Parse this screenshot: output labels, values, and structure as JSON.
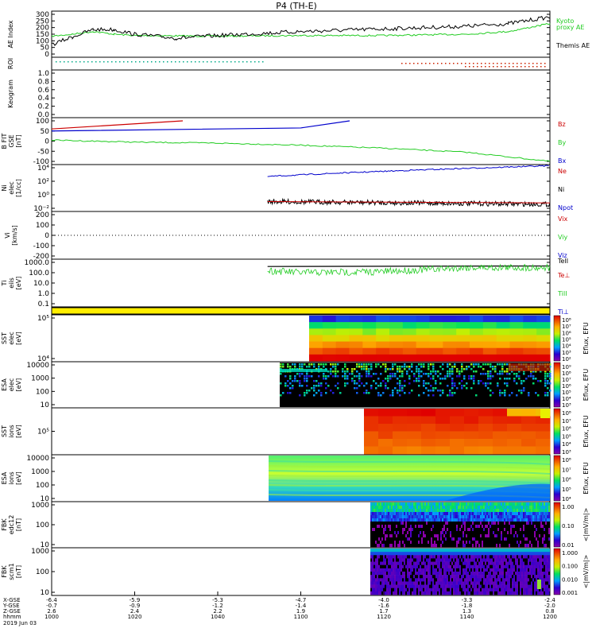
{
  "title": "P4 (TH-E)",
  "colors": {
    "kyoto": "#22cc22",
    "themis": "#000000",
    "bz": "#cc0000",
    "by": "#22cc22",
    "bx": "#0000cc",
    "ne": "#cc0000",
    "ni": "#0000cc",
    "npot": "#000000",
    "vx": "#cc0000",
    "vy": "#22cc22",
    "vz": "#0000cc",
    "te_perp": "#cc0000",
    "ti_par": "#22cc22",
    "ti_perp": "#0000cc",
    "teii": "#000000",
    "roi_left": "#00aa88",
    "roi_right": "#cc2200",
    "band": "#ffee00"
  },
  "panels": [
    {
      "key": "ae",
      "label": "AE Index",
      "ticks": [
        "300",
        "250",
        "200",
        "150",
        "100",
        "50",
        "0"
      ],
      "legend": [
        "Kyoto",
        "proxy AE",
        "Themis AE"
      ]
    },
    {
      "key": "roi",
      "label": "ROI",
      "ticks": []
    },
    {
      "key": "keo",
      "label": "Keogram",
      "ticks": [
        "1.0",
        "0.8",
        "0.6",
        "0.4",
        "0.2",
        "0.0"
      ]
    },
    {
      "key": "bfit",
      "label": "B FIT\nGSE\n[nT]",
      "ticks": [
        "100",
        "50",
        "0",
        "-50",
        "-100"
      ],
      "legend": [
        "Bz",
        "By",
        "Bx"
      ]
    },
    {
      "key": "ni",
      "label": "Ni\nelec\n[1/cc]",
      "ticks": [
        "10⁴",
        "10²",
        "10⁰",
        "10⁻²"
      ],
      "legend": [
        "Ne",
        "Ni",
        "Npot"
      ]
    },
    {
      "key": "vi",
      "label": "Vi\n[km/s]",
      "ticks": [
        "200",
        "100",
        "0",
        "-100",
        "-200"
      ],
      "legend": [
        "Vix",
        "Viy",
        "Viz",
        "TeII"
      ]
    },
    {
      "key": "ti",
      "label": "Ti\neiis\n[eV]",
      "ticks": [
        "1000.0",
        "100.0",
        "10.0",
        "1.0",
        "0.1"
      ],
      "legend": [
        "Te⊥",
        "TiII",
        "Ti⊥"
      ]
    },
    {
      "key": "sst_e",
      "label": "SST\nelec\n[eV]",
      "ticks": [
        "10⁵",
        "10⁴"
      ],
      "cb": [
        "10⁸",
        "10⁷",
        "10⁶",
        "10⁵",
        "10⁴",
        "10³",
        "10²"
      ],
      "cblabel": "Eflux, EFU"
    },
    {
      "key": "esa_e",
      "label": "ESA\nelec\n[eV]",
      "ticks": [
        "10000",
        "1000",
        "100",
        "10"
      ],
      "cb": [
        "10⁹",
        "10⁸",
        "10⁷",
        "10⁶",
        "10⁵",
        "10⁴",
        "10³"
      ],
      "cblabel": "Eflux, EFU"
    },
    {
      "key": "sst_i",
      "label": "SST\nions\n[eV]",
      "ticks": [
        "10⁵"
      ],
      "cb": [
        "10⁸",
        "10⁷",
        "10⁶",
        "10⁵",
        "10⁴",
        "10³"
      ],
      "cblabel": "Eflux, EFU"
    },
    {
      "key": "esa_i",
      "label": "ESA\nions\n[eV]",
      "ticks": [
        "10000",
        "1000",
        "100",
        "10"
      ],
      "cb": [
        "10⁸",
        "10⁷",
        "10⁶",
        "10⁵",
        "10⁴"
      ],
      "cblabel": "Eflux, EFU"
    },
    {
      "key": "fbk1",
      "label": "FBK\nedc12\n[nT]",
      "ticks": [
        "1000",
        "100",
        "10"
      ],
      "cb": [
        "1.00",
        "0.10",
        "0.01"
      ],
      "cblabel": "<|mV/m|>"
    },
    {
      "key": "fbk2",
      "label": "FBK\nscm1\n[nT]",
      "ticks": [
        "1000",
        "100",
        "10"
      ],
      "cb": [
        "1.000",
        "0.100",
        "0.010",
        "0.001"
      ],
      "cblabel": "<|mV/m|>"
    }
  ],
  "xaxis": {
    "row_labels": [
      "X-GSE",
      "Y-GSE",
      "Z-GSE",
      "hhmm",
      "2019 Jun 03"
    ],
    "columns": [
      {
        "x": "-6.4",
        "y": "-0.7",
        "z": "2.6",
        "t": "1000"
      },
      {
        "x": "-5.9",
        "y": "-0.9",
        "z": "2.4",
        "t": "1020"
      },
      {
        "x": "-5.3",
        "y": "-1.2",
        "z": "2.2",
        "t": "1040"
      },
      {
        "x": "-4.7",
        "y": "-1.4",
        "z": "1.9",
        "t": "1100"
      },
      {
        "x": "-4.0",
        "y": "-1.6",
        "z": "1.7",
        "t": "1120"
      },
      {
        "x": "-3.3",
        "y": "-1.8",
        "z": "1.3",
        "t": "1140"
      },
      {
        "x": "-2.4",
        "y": "-2.0",
        "z": "0.8",
        "t": "1200"
      }
    ]
  },
  "chart_data": {
    "type": "line",
    "title": "P4 (TH-E)",
    "x_time_hhmm": [
      "1000",
      "1020",
      "1040",
      "1100",
      "1120",
      "1140",
      "1200"
    ],
    "series": [
      {
        "name": "Kyoto proxy AE",
        "x": [
          "1000",
          "1005",
          "1010",
          "1015",
          "1020",
          "1040",
          "1100",
          "1120",
          "1140",
          "1150",
          "1200"
        ],
        "values": [
          135,
          150,
          170,
          150,
          140,
          135,
          140,
          140,
          150,
          170,
          230
        ]
      },
      {
        "name": "Themis AE",
        "x": [
          "1000",
          "1005",
          "1010",
          "1015",
          "1020",
          "1030",
          "1040",
          "1100",
          "1120",
          "1140",
          "1150",
          "1200"
        ],
        "values": [
          70,
          130,
          185,
          185,
          150,
          120,
          140,
          170,
          190,
          210,
          230,
          280
        ]
      },
      {
        "name": "Bz",
        "x": [
          "1000",
          "1020"
        ],
        "values": [
          60,
          100
        ]
      },
      {
        "name": "Bx",
        "x": [
          "1000",
          "1100",
          "1120"
        ],
        "values": [
          50,
          65,
          100
        ]
      },
      {
        "name": "By",
        "x": [
          "1000",
          "1020",
          "1040",
          "1100",
          "1120",
          "1140",
          "1200"
        ],
        "values": [
          5,
          -5,
          -10,
          -20,
          -35,
          -55,
          -100
        ]
      },
      {
        "name": "Ni",
        "x": [
          "1052",
          "1120",
          "1200"
        ],
        "values": [
          3.0,
          4.0,
          4.3
        ]
      },
      {
        "name": "Ne",
        "x": [
          "1052",
          "1120",
          "1200"
        ],
        "values": [
          -1.0,
          -1.1,
          -1.4
        ]
      },
      {
        "name": "TeII",
        "x": [
          "1052",
          "1120",
          "1200"
        ],
        "values": [
          2.6,
          2.6,
          2.6
        ]
      },
      {
        "name": "TiII",
        "x": [
          "1052",
          "1100",
          "1120",
          "1140",
          "1200"
        ],
        "values": [
          2.2,
          2.0,
          2.1,
          2.5,
          2.5
        ]
      }
    ]
  }
}
